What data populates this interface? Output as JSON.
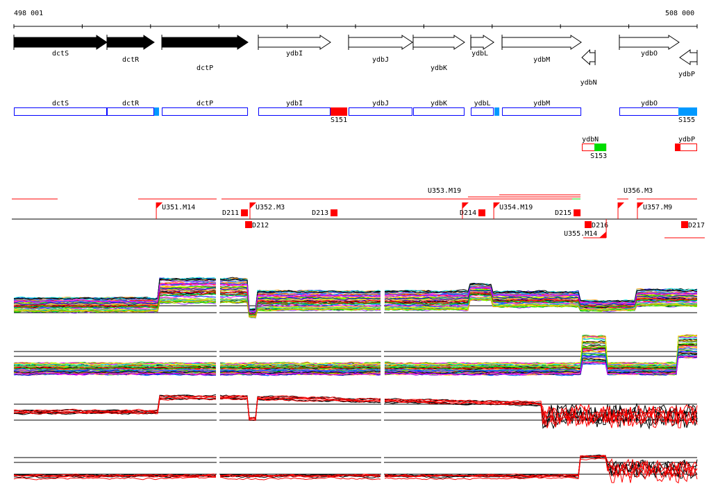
{
  "ruler": {
    "start_label": "498 001",
    "end_label": "508 000",
    "start_bp": 498001,
    "end_bp": 508000
  },
  "genes": [
    {
      "name": "dctS",
      "start": 498001,
      "end": 499363,
      "strand": "+",
      "filled": true
    },
    {
      "name": "dctR",
      "start": 499363,
      "end": 500054,
      "strand": "+",
      "filled": true
    },
    {
      "name": "dctP",
      "start": 500166,
      "end": 501426,
      "strand": "+",
      "filled": true
    },
    {
      "name": "ydbI",
      "start": 501578,
      "end": 502635,
      "strand": "+",
      "filled": false
    },
    {
      "name": "ydbJ",
      "start": 502899,
      "end": 503834,
      "strand": "+",
      "filled": false
    },
    {
      "name": "ydbK",
      "start": 503844,
      "end": 504596,
      "strand": "+",
      "filled": false
    },
    {
      "name": "ydbL",
      "start": 504688,
      "end": 505024,
      "strand": "+",
      "filled": false
    },
    {
      "name": "ydbM",
      "start": 505145,
      "end": 506304,
      "strand": "+",
      "filled": false
    },
    {
      "name": "ydbN",
      "start": 506314,
      "end": 506507,
      "strand": "-",
      "filled": false
    },
    {
      "name": "ydbO",
      "start": 506862,
      "end": 507736,
      "strand": "+",
      "filled": false
    },
    {
      "name": "ydbP",
      "start": 507746,
      "end": 508000,
      "strand": "-",
      "filled": false
    }
  ],
  "transcripts_forward": [
    {
      "name": "dctS",
      "start": 498001,
      "end": 499363
    },
    {
      "name": "dctR",
      "start": 499363,
      "end": 500054
    },
    {
      "name": "dctP",
      "start": 500166,
      "end": 501426
    },
    {
      "name": "ydbI",
      "start": 501578,
      "end": 502635
    },
    {
      "name": "ydbJ",
      "start": 502899,
      "end": 503834
    },
    {
      "name": "ydbK",
      "start": 503844,
      "end": 504596
    },
    {
      "name": "ydbL",
      "start": 504688,
      "end": 505024
    },
    {
      "name": "ydbM",
      "start": 505145,
      "end": 506304
    },
    {
      "name": "ydbO",
      "start": 506862,
      "end": 507736
    }
  ],
  "segments_forward": [
    {
      "label": "",
      "start": 500054,
      "end": 500125,
      "color": "#0099ff"
    },
    {
      "label": "S151",
      "start": 502635,
      "end": 502879,
      "color": "#ff0000"
    },
    {
      "label": "",
      "start": 505034,
      "end": 505105,
      "color": "#0099ff"
    },
    {
      "label": "S155",
      "start": 507726,
      "end": 508000,
      "color": "#0099ff"
    }
  ],
  "transcripts_reverse": [
    {
      "name": "ydbN",
      "start": 506314,
      "end": 506670,
      "segment": {
        "label": "S153",
        "start": 506497,
        "end": 506670,
        "color": "#00dd00"
      }
    },
    {
      "name": "ydbP",
      "start": 507675,
      "end": 508000,
      "segment": {
        "label": "",
        "start": 507675,
        "end": 507756,
        "color": "#ff0000"
      }
    }
  ],
  "features": {
    "upstream": [
      {
        "label": "U351.M14",
        "pos": 500085
      },
      {
        "label": "U352.M3",
        "pos": 501456
      },
      {
        "label": "U353.M19",
        "pos": 504565
      },
      {
        "label": "U354.M19",
        "pos": 505024
      },
      {
        "label": "U356.M3",
        "pos": 506842
      },
      {
        "label": "U357.M9",
        "pos": 507126
      }
    ],
    "downstream": [
      {
        "label": "D211",
        "pos": 501426,
        "below": false
      },
      {
        "label": "D212",
        "pos": 501487,
        "below": true
      },
      {
        "label": "D213",
        "pos": 502737,
        "below": false
      },
      {
        "label": "D214",
        "pos": 504901,
        "below": false
      },
      {
        "label": "D215",
        "pos": 506294,
        "below": false
      },
      {
        "label": "D216",
        "pos": 506456,
        "below": true
      },
      {
        "label": "D217",
        "pos": 507868,
        "below": true
      }
    ],
    "reverse_upstream": [
      {
        "label": "U355.M14",
        "pos": 506670
      }
    ]
  },
  "colors": {
    "feature": "#ff0000",
    "transcript": "#0000ff",
    "gene_fill": "#000000"
  }
}
